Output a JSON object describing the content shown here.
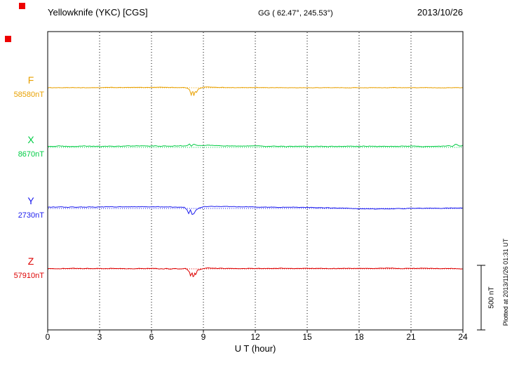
{
  "header": {
    "station": "Yellowknife (YKC)  [CGS]",
    "gg": "GG ( 62.47°, 245.53°)",
    "date": "2013/10/26"
  },
  "axis": {
    "xlabel": "U T (hour)"
  },
  "side": {
    "scale_label": "500 nT",
    "plotted_at": "Plotted at 2013/11/26 01:31 UT"
  },
  "decor": {
    "marker_color": "#ee0000"
  },
  "chart_data": {
    "type": "line",
    "title": "Yellowknife (YKC) [CGS] magnetogram, 2013/10/26",
    "xlabel": "U T (hour)",
    "x_range": [
      0,
      24
    ],
    "x_ticks": [
      0,
      3,
      6,
      9,
      12,
      15,
      18,
      21,
      24
    ],
    "grid": "vertical-dotted",
    "units": "nT",
    "scale_bar_nT": 500,
    "series": [
      {
        "name": "F",
        "baseline_nT": 58580,
        "value_label": "58580nT",
        "color": "#e8a000",
        "noise_nT": 3,
        "points": [
          [
            0,
            0
          ],
          [
            0.5,
            1
          ],
          [
            1,
            0
          ],
          [
            1.5,
            1
          ],
          [
            2,
            0
          ],
          [
            2.5,
            1
          ],
          [
            3,
            1
          ],
          [
            3.5,
            2
          ],
          [
            4,
            2
          ],
          [
            4.5,
            2
          ],
          [
            5,
            2
          ],
          [
            5.5,
            3
          ],
          [
            6,
            3
          ],
          [
            6.5,
            4
          ],
          [
            7,
            3
          ],
          [
            7.5,
            2
          ],
          [
            7.9,
            2
          ],
          [
            8.1,
            -5
          ],
          [
            8.2,
            -15
          ],
          [
            8.3,
            -55
          ],
          [
            8.38,
            -18
          ],
          [
            8.45,
            -62
          ],
          [
            8.52,
            -25
          ],
          [
            8.6,
            -38
          ],
          [
            8.7,
            -10
          ],
          [
            8.85,
            -4
          ],
          [
            9,
            4
          ],
          [
            9.2,
            8
          ],
          [
            9.4,
            5
          ],
          [
            9.7,
            3
          ],
          [
            10,
            2
          ],
          [
            10.5,
            2
          ],
          [
            11,
            1
          ],
          [
            12,
            1
          ],
          [
            13,
            1
          ],
          [
            14,
            0
          ],
          [
            15,
            0
          ],
          [
            16,
            1
          ],
          [
            17,
            0
          ],
          [
            18,
            1
          ],
          [
            19,
            0
          ],
          [
            20,
            1
          ],
          [
            21,
            0
          ],
          [
            22,
            1
          ],
          [
            23,
            0
          ],
          [
            23.5,
            1
          ],
          [
            24,
            0
          ]
        ]
      },
      {
        "name": "X",
        "baseline_nT": 8670,
        "value_label": "8670nT",
        "color": "#00cc44",
        "noise_nT": 5,
        "points": [
          [
            0,
            8
          ],
          [
            0.5,
            10
          ],
          [
            1,
            9
          ],
          [
            1.5,
            8
          ],
          [
            2,
            8
          ],
          [
            2.5,
            9
          ],
          [
            3,
            8
          ],
          [
            3.5,
            9
          ],
          [
            4,
            9
          ],
          [
            4.5,
            10
          ],
          [
            5,
            10
          ],
          [
            5.5,
            11
          ],
          [
            6,
            11
          ],
          [
            6.5,
            10
          ],
          [
            7,
            10
          ],
          [
            7.5,
            11
          ],
          [
            7.9,
            12
          ],
          [
            8.1,
            18
          ],
          [
            8.2,
            28
          ],
          [
            8.3,
            12
          ],
          [
            8.45,
            24
          ],
          [
            8.6,
            14
          ],
          [
            8.8,
            16
          ],
          [
            9,
            16
          ],
          [
            9.3,
            18
          ],
          [
            9.6,
            15
          ],
          [
            10,
            13
          ],
          [
            10.5,
            12
          ],
          [
            11,
            11
          ],
          [
            12,
            10
          ],
          [
            13,
            9
          ],
          [
            14,
            8
          ],
          [
            15,
            9
          ],
          [
            16,
            8
          ],
          [
            17,
            8
          ],
          [
            18,
            9
          ],
          [
            19,
            8
          ],
          [
            20,
            8
          ],
          [
            21,
            9
          ],
          [
            22,
            8
          ],
          [
            23,
            9
          ],
          [
            23.4,
            10
          ],
          [
            23.6,
            26
          ],
          [
            23.75,
            12
          ],
          [
            23.9,
            10
          ],
          [
            24,
            13
          ]
        ]
      },
      {
        "name": "Y",
        "baseline_nT": 2730,
        "value_label": "2730nT",
        "color": "#1a1aee",
        "noise_nT": 4,
        "points": [
          [
            0,
            10
          ],
          [
            0.5,
            11
          ],
          [
            1,
            11
          ],
          [
            1.5,
            10
          ],
          [
            2,
            10
          ],
          [
            2.5,
            11
          ],
          [
            3,
            11
          ],
          [
            3.5,
            12
          ],
          [
            4,
            12
          ],
          [
            4.5,
            12
          ],
          [
            5,
            12
          ],
          [
            5.5,
            13
          ],
          [
            6,
            13
          ],
          [
            6.5,
            12
          ],
          [
            7,
            12
          ],
          [
            7.5,
            11
          ],
          [
            7.9,
            8
          ],
          [
            8.05,
            -10
          ],
          [
            8.15,
            -38
          ],
          [
            8.25,
            -12
          ],
          [
            8.35,
            -46
          ],
          [
            8.45,
            -42
          ],
          [
            8.55,
            -15
          ],
          [
            8.7,
            0
          ],
          [
            8.85,
            8
          ],
          [
            9,
            14
          ],
          [
            9.3,
            16
          ],
          [
            9.6,
            16
          ],
          [
            10,
            15
          ],
          [
            10.5,
            14
          ],
          [
            11,
            13
          ],
          [
            11.5,
            13
          ],
          [
            12,
            12
          ],
          [
            12.5,
            11
          ],
          [
            13,
            10
          ],
          [
            13.5,
            10
          ],
          [
            14,
            10
          ],
          [
            14.5,
            9
          ],
          [
            15,
            8
          ],
          [
            15.5,
            7
          ],
          [
            16,
            6
          ],
          [
            16.5,
            4
          ],
          [
            17,
            2
          ],
          [
            17.5,
            0
          ],
          [
            18,
            -2
          ],
          [
            18.5,
            -3
          ],
          [
            19,
            -4
          ],
          [
            19.5,
            -3
          ],
          [
            20,
            -2
          ],
          [
            20.5,
            -1
          ],
          [
            21,
            0
          ],
          [
            21.5,
            1
          ],
          [
            22,
            2
          ],
          [
            22.5,
            2
          ],
          [
            23,
            2
          ],
          [
            23.5,
            3
          ],
          [
            24,
            4
          ]
        ]
      },
      {
        "name": "Z",
        "baseline_nT": 57910,
        "value_label": "57910nT",
        "color": "#dd0000",
        "noise_nT": 4,
        "points": [
          [
            0,
            2
          ],
          [
            0.5,
            2
          ],
          [
            1,
            2
          ],
          [
            1.5,
            3
          ],
          [
            2,
            3
          ],
          [
            2.5,
            2
          ],
          [
            3,
            2
          ],
          [
            3.5,
            3
          ],
          [
            4,
            3
          ],
          [
            4.5,
            2
          ],
          [
            5,
            2
          ],
          [
            5.5,
            3
          ],
          [
            6,
            3
          ],
          [
            6.4,
            1
          ],
          [
            6.7,
            0
          ],
          [
            6.9,
            4
          ],
          [
            7.1,
            -2
          ],
          [
            7.3,
            3
          ],
          [
            7.6,
            -3
          ],
          [
            7.8,
            1
          ],
          [
            8,
            2
          ],
          [
            8.1,
            -10
          ],
          [
            8.2,
            -28
          ],
          [
            8.27,
            -65
          ],
          [
            8.33,
            -22
          ],
          [
            8.42,
            -70
          ],
          [
            8.5,
            -32
          ],
          [
            8.56,
            -48
          ],
          [
            8.65,
            -12
          ],
          [
            8.8,
            -6
          ],
          [
            9,
            3
          ],
          [
            9.3,
            7
          ],
          [
            9.6,
            3
          ],
          [
            10,
            4
          ],
          [
            10.5,
            3
          ],
          [
            11,
            3
          ],
          [
            11.5,
            4
          ],
          [
            12,
            4
          ],
          [
            12.5,
            3
          ],
          [
            13,
            3
          ],
          [
            13.5,
            4
          ],
          [
            14,
            4
          ],
          [
            14.5,
            3
          ],
          [
            15,
            3
          ],
          [
            15.5,
            4
          ],
          [
            16,
            4
          ],
          [
            16.5,
            3
          ],
          [
            17,
            3
          ],
          [
            17.5,
            4
          ],
          [
            18,
            4
          ],
          [
            18.5,
            3
          ],
          [
            19,
            3
          ],
          [
            19.5,
            4
          ],
          [
            20,
            4
          ],
          [
            20.5,
            3
          ],
          [
            21,
            3
          ],
          [
            21.5,
            4
          ],
          [
            22,
            4
          ],
          [
            22.5,
            3
          ],
          [
            23,
            3
          ],
          [
            23.5,
            2
          ],
          [
            24,
            0
          ]
        ]
      }
    ]
  }
}
